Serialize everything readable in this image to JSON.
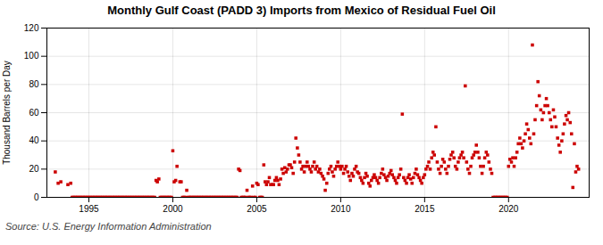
{
  "chart_data": {
    "type": "scatter",
    "title": "Monthly Gulf Coast (PADD 3) Imports from Mexico of Residual Fuel Oil",
    "ylabel": "Thousand Barrels per Day",
    "annotations": [
      "Source: U.S. Energy Information Administration"
    ],
    "color": "#cc0000",
    "marker": "square",
    "grid": true,
    "xlim": [
      1992.5,
      2024.8
    ],
    "xticks": [
      1995,
      2000,
      2005,
      2010,
      2015,
      2020
    ],
    "ylim": [
      0,
      120
    ],
    "yticks": [
      0,
      20,
      40,
      60,
      80,
      100,
      120
    ],
    "x": [
      1993.0,
      1993.17,
      1993.33,
      1993.75,
      1993.92,
      1994.0,
      1994.08,
      1994.17,
      1994.25,
      1994.33,
      1994.42,
      1994.5,
      1994.58,
      1994.67,
      1994.75,
      1994.83,
      1994.92,
      1995.0,
      1995.08,
      1995.17,
      1995.25,
      1995.33,
      1995.42,
      1995.5,
      1995.58,
      1995.67,
      1995.75,
      1995.83,
      1995.92,
      1996.0,
      1996.08,
      1996.17,
      1996.25,
      1996.33,
      1996.42,
      1996.5,
      1996.58,
      1996.67,
      1996.75,
      1996.83,
      1996.92,
      1997.0,
      1997.08,
      1997.17,
      1997.25,
      1997.33,
      1997.42,
      1997.5,
      1997.58,
      1997.67,
      1997.75,
      1997.83,
      1997.92,
      1998.0,
      1998.08,
      1998.17,
      1998.25,
      1998.33,
      1998.42,
      1998.5,
      1998.58,
      1998.67,
      1998.75,
      1998.83,
      1998.92,
      1999.0,
      1999.08,
      1999.17,
      1999.25,
      1999.33,
      1999.42,
      1999.5,
      1999.58,
      1999.67,
      1999.75,
      1999.83,
      1999.92,
      2000.0,
      2000.08,
      2000.17,
      2000.25,
      2000.42,
      2000.5,
      2000.58,
      2000.67,
      2000.75,
      2000.83,
      2000.92,
      2001.0,
      2001.08,
      2001.17,
      2001.25,
      2001.33,
      2001.42,
      2001.5,
      2001.58,
      2001.67,
      2001.75,
      2001.83,
      2001.92,
      2002.0,
      2002.08,
      2002.17,
      2002.25,
      2002.33,
      2002.42,
      2002.5,
      2002.58,
      2002.67,
      2002.75,
      2002.83,
      2002.92,
      2003.0,
      2003.08,
      2003.17,
      2003.25,
      2003.33,
      2003.42,
      2003.5,
      2003.58,
      2003.67,
      2003.75,
      2003.83,
      2003.92,
      2004.0,
      2004.08,
      2004.17,
      2004.25,
      2004.33,
      2004.42,
      2004.5,
      2004.58,
      2004.67,
      2004.75,
      2004.83,
      2004.92,
      2005.0,
      2005.08,
      2005.17,
      2005.25,
      2005.33,
      2005.42,
      2005.5,
      2005.58,
      2005.67,
      2005.75,
      2005.83,
      2005.92,
      2006.0,
      2006.08,
      2006.17,
      2006.25,
      2006.33,
      2006.42,
      2006.5,
      2006.58,
      2006.67,
      2006.75,
      2006.83,
      2006.92,
      2007.0,
      2007.08,
      2007.17,
      2007.25,
      2007.33,
      2007.42,
      2007.5,
      2007.58,
      2007.67,
      2007.75,
      2007.83,
      2007.92,
      2008.0,
      2008.08,
      2008.17,
      2008.25,
      2008.33,
      2008.42,
      2008.5,
      2008.58,
      2008.67,
      2008.75,
      2008.83,
      2008.92,
      2009.0,
      2009.08,
      2009.17,
      2009.25,
      2009.33,
      2009.42,
      2009.5,
      2009.58,
      2009.67,
      2009.75,
      2009.83,
      2009.92,
      2010.0,
      2010.08,
      2010.17,
      2010.25,
      2010.33,
      2010.42,
      2010.5,
      2010.58,
      2010.67,
      2010.75,
      2010.83,
      2010.92,
      2011.0,
      2011.08,
      2011.17,
      2011.25,
      2011.33,
      2011.42,
      2011.5,
      2011.58,
      2011.67,
      2011.75,
      2011.83,
      2011.92,
      2012.0,
      2012.08,
      2012.17,
      2012.25,
      2012.33,
      2012.42,
      2012.5,
      2012.58,
      2012.67,
      2012.75,
      2012.83,
      2012.92,
      2013.0,
      2013.08,
      2013.17,
      2013.25,
      2013.33,
      2013.42,
      2013.5,
      2013.58,
      2013.67,
      2013.75,
      2013.83,
      2013.92,
      2014.0,
      2014.08,
      2014.17,
      2014.25,
      2014.33,
      2014.42,
      2014.5,
      2014.58,
      2014.67,
      2014.75,
      2014.83,
      2014.92,
      2015.0,
      2015.08,
      2015.17,
      2015.25,
      2015.33,
      2015.42,
      2015.5,
      2015.58,
      2015.67,
      2015.75,
      2015.83,
      2015.92,
      2016.0,
      2016.08,
      2016.17,
      2016.25,
      2016.33,
      2016.42,
      2016.5,
      2016.58,
      2016.67,
      2016.75,
      2016.83,
      2016.92,
      2017.0,
      2017.08,
      2017.17,
      2017.25,
      2017.33,
      2017.42,
      2017.5,
      2017.58,
      2017.67,
      2017.75,
      2017.83,
      2017.92,
      2018.0,
      2018.08,
      2018.17,
      2018.25,
      2018.33,
      2018.42,
      2018.5,
      2018.58,
      2018.67,
      2018.75,
      2018.83,
      2018.92,
      2019.0,
      2019.08,
      2019.17,
      2019.25,
      2019.33,
      2019.42,
      2019.5,
      2019.58,
      2019.67,
      2019.75,
      2019.83,
      2019.92,
      2020.0,
      2020.08,
      2020.17,
      2020.25,
      2020.33,
      2020.42,
      2020.5,
      2020.58,
      2020.67,
      2020.75,
      2020.83,
      2020.92,
      2021.0,
      2021.08,
      2021.17,
      2021.25,
      2021.33,
      2021.42,
      2021.5,
      2021.58,
      2021.67,
      2021.75,
      2021.83,
      2021.92,
      2022.0,
      2022.08,
      2022.17,
      2022.25,
      2022.33,
      2022.42,
      2022.5,
      2022.58,
      2022.67,
      2022.75,
      2022.83,
      2022.92,
      2023.0,
      2023.08,
      2023.17,
      2023.25,
      2023.33,
      2023.42,
      2023.5,
      2023.58,
      2023.67,
      2023.75,
      2023.83,
      2023.92,
      2024.0,
      2024.08,
      2024.17
    ],
    "values": [
      18,
      10,
      11,
      9,
      10,
      0,
      0,
      0,
      0,
      0,
      0,
      0,
      0,
      0,
      0,
      0,
      0,
      0,
      0,
      0,
      0,
      0,
      0,
      0,
      0,
      0,
      0,
      0,
      0,
      0,
      0,
      0,
      0,
      0,
      0,
      0,
      0,
      0,
      0,
      0,
      0,
      0,
      0,
      0,
      0,
      0,
      0,
      0,
      0,
      0,
      0,
      0,
      0,
      0,
      0,
      0,
      0,
      0,
      0,
      0,
      0,
      0,
      0,
      0,
      0,
      12,
      11,
      13,
      0,
      0,
      0,
      0,
      0,
      0,
      0,
      0,
      0,
      33,
      11,
      12,
      22,
      11,
      11,
      0,
      0,
      0,
      5,
      0,
      0,
      0,
      0,
      0,
      0,
      0,
      0,
      0,
      0,
      0,
      0,
      0,
      0,
      0,
      0,
      0,
      0,
      0,
      0,
      0,
      0,
      0,
      0,
      0,
      0,
      0,
      0,
      0,
      0,
      0,
      0,
      0,
      0,
      0,
      0,
      20,
      19,
      0,
      0,
      0,
      0,
      5,
      0,
      0,
      0,
      8,
      0,
      0,
      10,
      9,
      0,
      0,
      0,
      23,
      11,
      9,
      11,
      14,
      9,
      9,
      9,
      12,
      14,
      12,
      9,
      13,
      20,
      17,
      21,
      18,
      20,
      23,
      23,
      21,
      17,
      25,
      42,
      35,
      30,
      25,
      20,
      22,
      18,
      22,
      25,
      22,
      20,
      18,
      22,
      25,
      20,
      22,
      18,
      20,
      17,
      15,
      13,
      5,
      10,
      17,
      20,
      22,
      18,
      15,
      20,
      22,
      25,
      22,
      20,
      22,
      17,
      20,
      22,
      18,
      15,
      12,
      17,
      15,
      20,
      22,
      18,
      17,
      14,
      12,
      10,
      14,
      17,
      15,
      10,
      8,
      12,
      14,
      16,
      14,
      12,
      10,
      14,
      17,
      20,
      16,
      14,
      12,
      15,
      17,
      19,
      16,
      14,
      12,
      10,
      14,
      16,
      20,
      59,
      14,
      12,
      10,
      14,
      16,
      13,
      10,
      14,
      17,
      20,
      16,
      14,
      12,
      10,
      14,
      16,
      20,
      22,
      25,
      20,
      28,
      32,
      30,
      50,
      25,
      20,
      17,
      22,
      27,
      25,
      20,
      17,
      22,
      27,
      30,
      32,
      28,
      22,
      20,
      25,
      28,
      30,
      32,
      28,
      79,
      25,
      20,
      17,
      22,
      28,
      30,
      32,
      37,
      32,
      28,
      22,
      17,
      22,
      28,
      32,
      30,
      25,
      20,
      17,
      0,
      0,
      0,
      0,
      0,
      0,
      0,
      0,
      0,
      0,
      0,
      22,
      27,
      25,
      28,
      22,
      28,
      32,
      38,
      42,
      38,
      35,
      40,
      45,
      52,
      48,
      42,
      38,
      108,
      45,
      55,
      65,
      82,
      72,
      62,
      55,
      60,
      65,
      70,
      65,
      60,
      55,
      50,
      62,
      57,
      50,
      42,
      37,
      32,
      40,
      45,
      52,
      58,
      55,
      60,
      53,
      45,
      7,
      38,
      18,
      22,
      20
    ]
  }
}
